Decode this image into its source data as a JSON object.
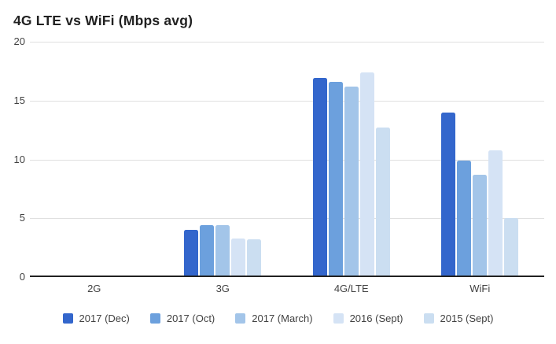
{
  "colors": {
    "background": "#FFFFFF",
    "title_text": "#212121",
    "axis_text": "#424242",
    "grid": "#E0E0E0",
    "axis_line": "#212121"
  },
  "chart_data": {
    "type": "bar",
    "title": "4G LTE vs WiFi (Mbps avg)",
    "xlabel": "",
    "ylabel": "",
    "categories": [
      "2G",
      "3G",
      "4G/LTE",
      "WiFi"
    ],
    "series": [
      {
        "name": "2017 (Dec)",
        "color": "#3366CC",
        "values": [
          0.1,
          4.0,
          16.9,
          14.0
        ]
      },
      {
        "name": "2017 (Oct)",
        "color": "#6CA0DD",
        "values": [
          0.1,
          4.4,
          16.6,
          9.9
        ]
      },
      {
        "name": "2017 (March)",
        "color": "#A3C5E9",
        "values": [
          0.1,
          4.4,
          16.2,
          8.7
        ]
      },
      {
        "name": "2016 (Sept)",
        "color": "#D5E3F5",
        "values": [
          0.1,
          3.3,
          17.4,
          10.8
        ]
      },
      {
        "name": "2015 (Sept)",
        "color": "#CBDEF1",
        "values": [
          0.1,
          3.2,
          12.7,
          5.0
        ]
      }
    ],
    "ylim": [
      0,
      20
    ],
    "yticks": [
      0,
      5,
      10,
      15,
      20
    ],
    "grid": true,
    "legend_position": "bottom"
  }
}
